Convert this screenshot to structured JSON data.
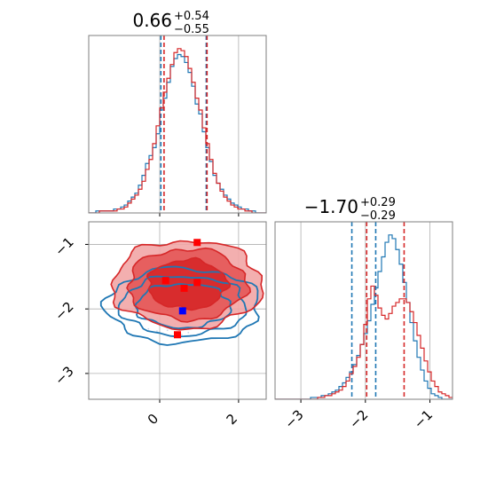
{
  "colors": {
    "blue": "#1f77b4",
    "red": "#d62728",
    "marker_red": "#ff0000",
    "marker_blue": "#0000ff"
  },
  "chart_data": [
    {
      "type": "histogram",
      "panel": "top-left",
      "title": {
        "main": "0.66",
        "sup": "+0.54",
        "sub": "−0.55"
      },
      "xlim": [
        -1.8,
        2.7
      ],
      "grid": true,
      "series": [
        {
          "name": "",
          "color": "blue",
          "bin_start": -1.8,
          "bin_width": 0.09,
          "counts": [
            0,
            0,
            1,
            1,
            1,
            1,
            1,
            2,
            2,
            3,
            4,
            6,
            8,
            10,
            14,
            19,
            25,
            29,
            33,
            40,
            52,
            58,
            66,
            74,
            78,
            80,
            79,
            76,
            71,
            64,
            55,
            50,
            41,
            33,
            26,
            19,
            15,
            12,
            9,
            7,
            5,
            4,
            3,
            2,
            2,
            1,
            1,
            0,
            0,
            0
          ],
          "quantile_lines": [
            0.03,
            1.18
          ]
        },
        {
          "name": "",
          "color": "red",
          "bin_start": -1.8,
          "bin_width": 0.09,
          "counts": [
            0,
            0,
            0,
            1,
            1,
            1,
            1,
            1,
            2,
            2,
            3,
            5,
            7,
            9,
            12,
            16,
            22,
            27,
            35,
            44,
            53,
            61,
            68,
            75,
            81,
            83,
            82,
            79,
            73,
            66,
            58,
            52,
            43,
            35,
            27,
            20,
            15,
            11,
            8,
            6,
            4,
            3,
            2,
            2,
            1,
            1,
            0,
            0,
            0,
            0
          ],
          "quantile_lines": [
            0.11,
            1.2
          ]
        }
      ]
    },
    {
      "type": "histogram",
      "panel": "bottom-right",
      "title": {
        "main": "−1.70",
        "sup": "+0.29",
        "sub": "−0.29"
      },
      "xlim": [
        -3.4,
        -0.65
      ],
      "xticks": [
        -3,
        -2,
        -1
      ],
      "xtick_labels": [
        "−3",
        "−2",
        "−1"
      ],
      "grid": true,
      "series": [
        {
          "name": "",
          "color": "blue",
          "bin_start": -3.4,
          "bin_width": 0.055,
          "counts": [
            0,
            0,
            0,
            0,
            0,
            0,
            0,
            0,
            0,
            0,
            1,
            1,
            1,
            2,
            2,
            3,
            4,
            5,
            7,
            9,
            12,
            15,
            19,
            24,
            30,
            36,
            43,
            52,
            61,
            70,
            78,
            86,
            90,
            88,
            82,
            74,
            64,
            53,
            42,
            32,
            23,
            16,
            10,
            6,
            3,
            2,
            1,
            0,
            0,
            0
          ],
          "quantile_lines": [
            -2.21,
            -1.84
          ]
        },
        {
          "name": "",
          "color": "red",
          "bin_start": -3.4,
          "bin_width": 0.055,
          "counts": [
            0,
            0,
            0,
            0,
            0,
            0,
            0,
            0,
            0,
            0,
            0,
            0,
            1,
            1,
            2,
            2,
            3,
            4,
            5,
            7,
            10,
            14,
            18,
            23,
            30,
            41,
            55,
            62,
            57,
            50,
            46,
            44,
            47,
            51,
            53,
            55,
            55,
            53,
            48,
            42,
            35,
            28,
            21,
            15,
            10,
            7,
            4,
            3,
            2,
            1
          ],
          "quantile_lines": [
            -1.98,
            -1.4
          ]
        }
      ]
    },
    {
      "type": "contour",
      "panel": "bottom-left",
      "xlim": [
        -1.8,
        2.7
      ],
      "ylim": [
        -3.4,
        -0.65
      ],
      "xticks": [
        0,
        2
      ],
      "xtick_labels": [
        "0",
        "2"
      ],
      "yticks": [
        -1,
        -2,
        -3
      ],
      "ytick_labels": [
        "−1",
        "−2",
        "−3"
      ],
      "grid": true,
      "series": [
        {
          "name": "",
          "color": "blue",
          "center": [
            0.6,
            -1.95
          ],
          "levels": [
            [
              1.2,
              0.34
            ],
            [
              1.6,
              0.46
            ],
            [
              1.95,
              0.58
            ]
          ]
        },
        {
          "name": "",
          "color": "red",
          "center": [
            0.7,
            -1.62
          ],
          "levels": [
            [
              1.0,
              0.38
            ],
            [
              1.5,
              0.55
            ],
            [
              1.9,
              0.68
            ]
          ]
        }
      ],
      "markers": [
        {
          "color": "marker_red",
          "x": 0.95,
          "y": -0.97
        },
        {
          "color": "marker_red",
          "x": 0.15,
          "y": -1.56
        },
        {
          "color": "marker_red",
          "x": 0.95,
          "y": -1.59
        },
        {
          "color": "marker_red",
          "x": 0.62,
          "y": -1.68
        },
        {
          "color": "marker_red",
          "x": 0.45,
          "y": -2.4
        },
        {
          "color": "marker_blue",
          "x": 0.58,
          "y": -2.03
        }
      ]
    }
  ]
}
